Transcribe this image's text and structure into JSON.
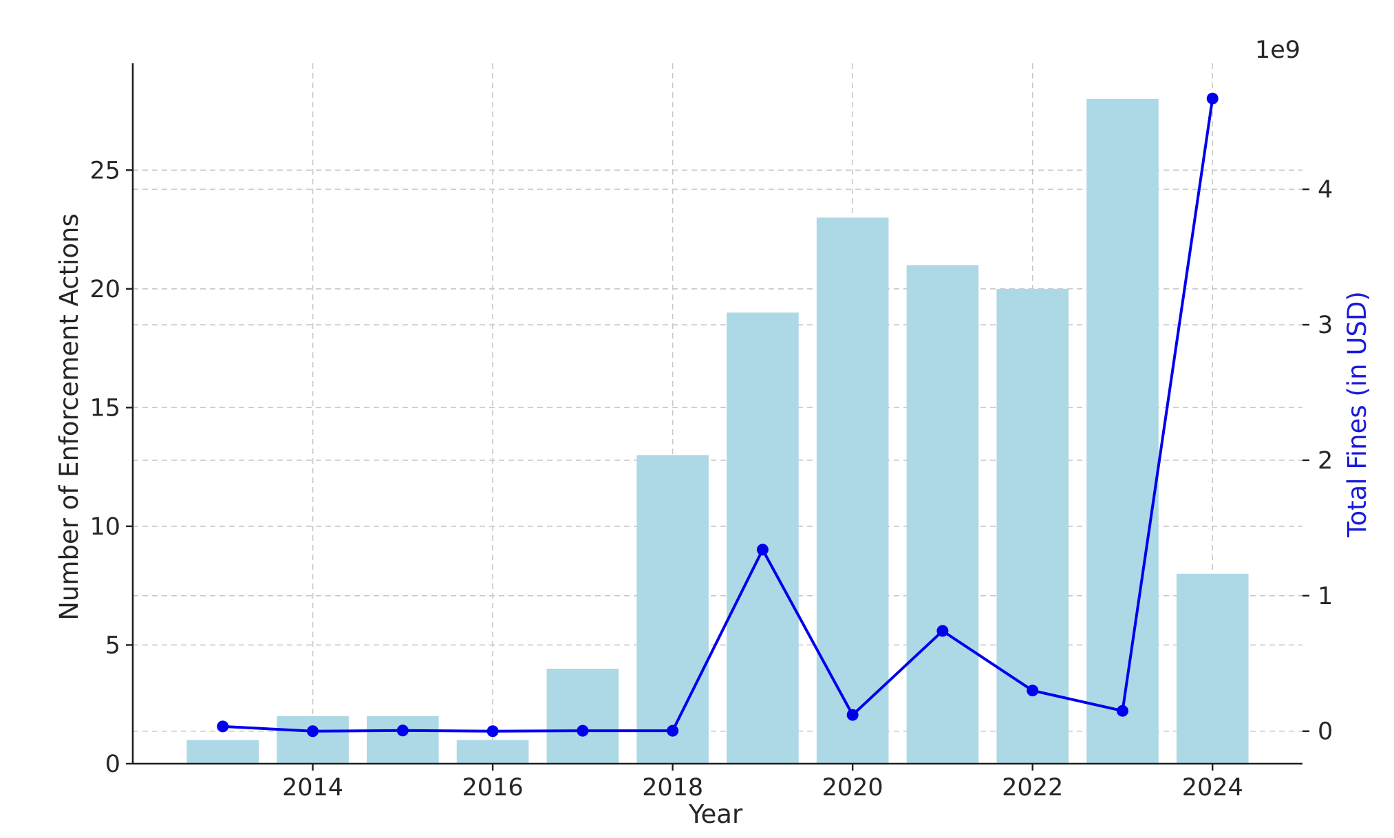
{
  "chart_data": {
    "type": "bar",
    "xlabel": "Year",
    "ylabel": "Number of Enforcement Actions",
    "y2label": "Total Fines (in USD)",
    "y2_offset_label": "1e9",
    "x": [
      2013,
      2014,
      2015,
      2016,
      2017,
      2018,
      2019,
      2020,
      2021,
      2022,
      2023,
      2024
    ],
    "xlim": [
      2012.0,
      2025.0
    ],
    "xticks": [
      2014,
      2016,
      2018,
      2020,
      2022,
      2024
    ],
    "ylim": [
      0,
      29.5
    ],
    "yticks": [
      0,
      5,
      10,
      15,
      20,
      25
    ],
    "y2lim": [
      -0.24,
      4.93
    ],
    "y2ticks": [
      0,
      1,
      2,
      3,
      4
    ],
    "grid": true,
    "series": [
      {
        "kind": "bar",
        "axis": "left",
        "color": "#add8e6",
        "values": [
          1,
          2,
          2,
          1,
          4,
          13,
          19,
          23,
          21,
          20,
          28,
          8
        ]
      },
      {
        "kind": "line",
        "axis": "right",
        "color": "#0000ee",
        "markers": true,
        "values": [
          0.035,
          0.0,
          0.005,
          0.0,
          0.003,
          0.003,
          1.34,
          0.12,
          0.74,
          0.3,
          0.15,
          4.67
        ]
      }
    ]
  }
}
